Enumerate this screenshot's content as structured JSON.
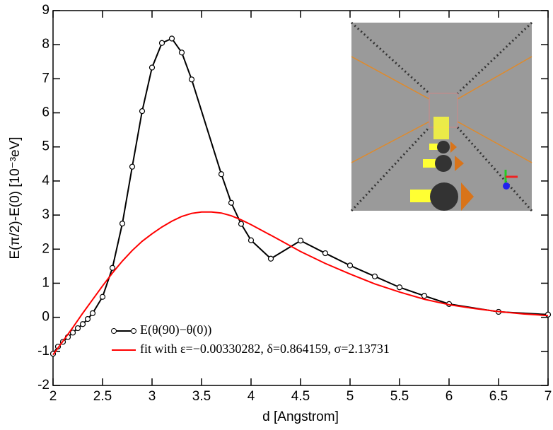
{
  "chart_data": {
    "type": "line",
    "xlabel": "d [Angstrom]",
    "ylabel": "E(π/2)-E(0) [10⁻³eV]",
    "xlim": [
      2,
      7
    ],
    "ylim": [
      -2,
      9
    ],
    "xticks": [
      2,
      2.5,
      3,
      3.5,
      4,
      4.5,
      5,
      5.5,
      6,
      6.5,
      7
    ],
    "yticks": [
      -2,
      -1,
      0,
      1,
      2,
      3,
      4,
      5,
      6,
      7,
      8,
      9
    ],
    "legend": "lower-left",
    "series": [
      {
        "name": "E(θ(90)−θ(0))",
        "color": "#000000",
        "marker": "circle",
        "x": [
          2.0,
          2.05,
          2.1,
          2.15,
          2.2,
          2.25,
          2.3,
          2.35,
          2.4,
          2.5,
          2.6,
          2.7,
          2.8,
          2.9,
          3.0,
          3.1,
          3.2,
          3.3,
          3.4,
          3.7,
          3.8,
          3.9,
          4.0,
          4.2,
          4.5,
          4.75,
          5.0,
          5.25,
          5.5,
          5.75,
          6.0,
          6.5,
          7.0
        ],
        "values": [
          -1.07,
          -0.86,
          -0.72,
          -0.58,
          -0.45,
          -0.32,
          -0.2,
          -0.05,
          0.12,
          0.6,
          1.45,
          2.75,
          4.42,
          6.05,
          7.33,
          8.05,
          8.18,
          7.77,
          6.98,
          4.2,
          3.36,
          2.74,
          2.26,
          1.72,
          2.25,
          1.88,
          1.52,
          1.2,
          0.88,
          0.63,
          0.39,
          0.16,
          0.08
        ]
      },
      {
        "name": "fit with ε=−0.00330282, δ=0.864159, σ=2.13731",
        "color": "#ff0000",
        "x": [
          2.0,
          2.1,
          2.2,
          2.3,
          2.4,
          2.5,
          2.6,
          2.7,
          2.8,
          2.9,
          3.0,
          3.1,
          3.2,
          3.3,
          3.4,
          3.5,
          3.6,
          3.7,
          3.8,
          3.9,
          4.0,
          4.25,
          4.5,
          4.75,
          5.0,
          5.25,
          5.5,
          5.75,
          6.0,
          6.25,
          6.5,
          6.75,
          7.0
        ],
        "values": [
          -1.1,
          -0.7,
          -0.3,
          0.12,
          0.52,
          0.92,
          1.3,
          1.65,
          1.96,
          2.23,
          2.45,
          2.65,
          2.82,
          2.96,
          3.05,
          3.09,
          3.09,
          3.06,
          2.98,
          2.86,
          2.72,
          2.33,
          1.93,
          1.58,
          1.27,
          0.98,
          0.74,
          0.53,
          0.37,
          0.26,
          0.17,
          0.1,
          0.05
        ]
      }
    ]
  }
}
